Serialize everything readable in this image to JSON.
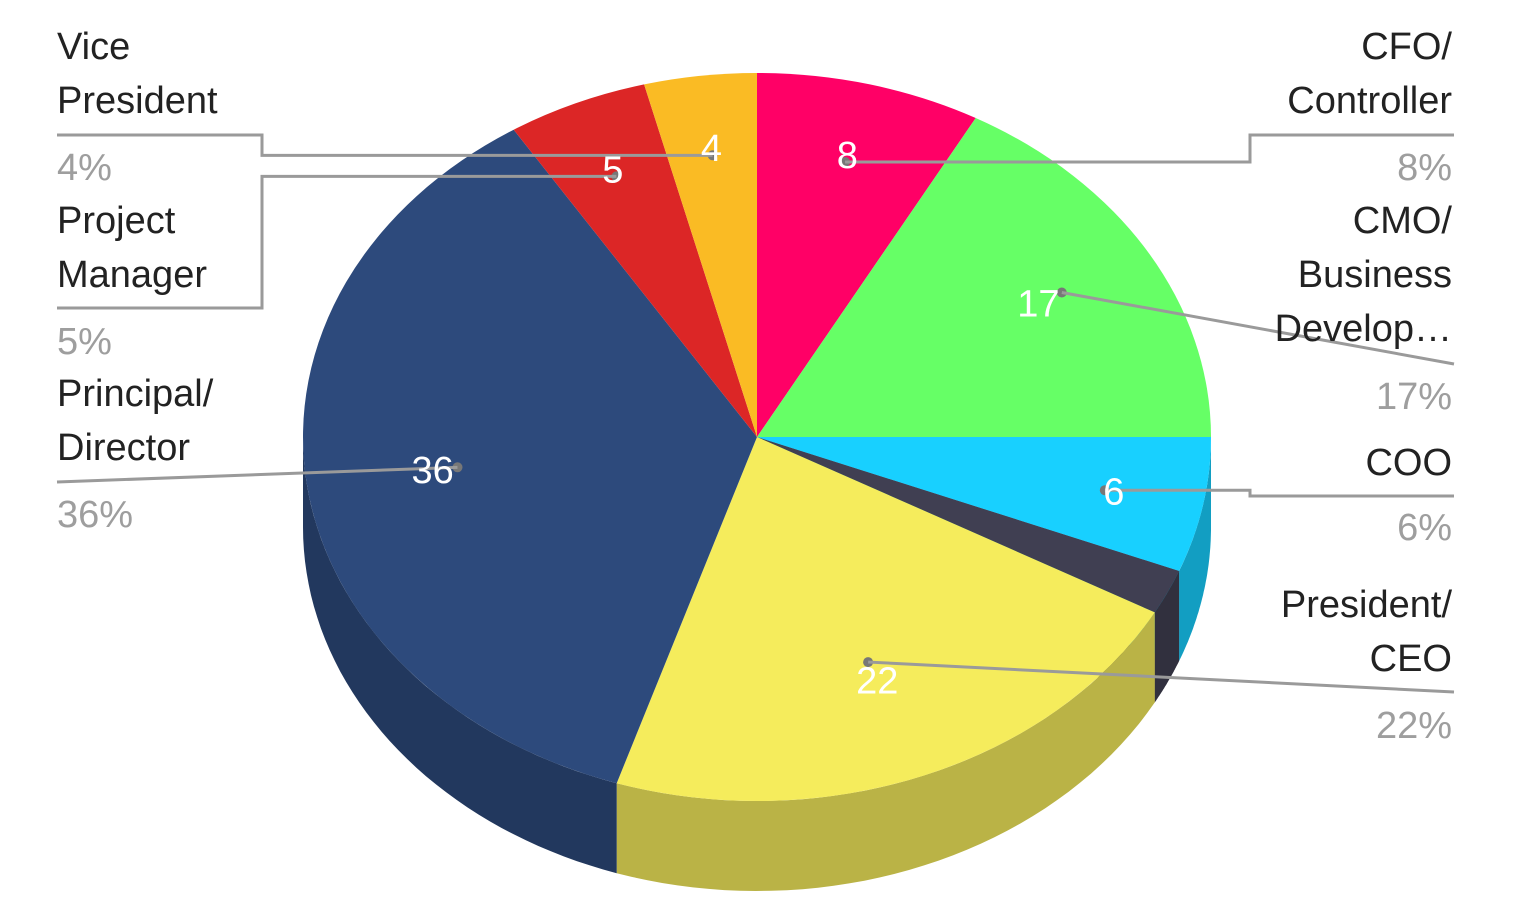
{
  "chart_data": {
    "type": "pie",
    "style": "3d",
    "title": "",
    "slices": [
      {
        "name": "CFO/ Controller",
        "lines": [
          "CFO/",
          "Controller"
        ],
        "value": 8,
        "percent": "8%",
        "color": "#ff0066"
      },
      {
        "name": "CMO/ Business Develop…",
        "lines": [
          "CMO/",
          "Business",
          "Develop…"
        ],
        "value": 17,
        "percent": "17%",
        "color": "#66ff66"
      },
      {
        "name": "COO",
        "lines": [
          "COO"
        ],
        "value": 6,
        "percent": "6%",
        "color": "#18d0ff"
      },
      {
        "name": "",
        "lines": [],
        "value": 2,
        "percent": "",
        "color": "#403f52"
      },
      {
        "name": "President/ CEO",
        "lines": [
          "President/",
          "CEO"
        ],
        "value": 22,
        "percent": "22%",
        "color": "#f5ec5c"
      },
      {
        "name": "Principal/ Director",
        "lines": [
          "Principal/",
          "Director"
        ],
        "value": 36,
        "percent": "36%",
        "color": "#2d4a7c"
      },
      {
        "name": "Project Manager",
        "lines": [
          "Project",
          "Manager"
        ],
        "value": 5,
        "percent": "5%",
        "color": "#dc2626"
      },
      {
        "name": "Vice President",
        "lines": [
          "Vice",
          "President"
        ],
        "value": 4,
        "percent": "4%",
        "color": "#fabb24"
      }
    ],
    "data_labels": [
      "8",
      "17",
      "6",
      "22",
      "36",
      "5",
      "4"
    ],
    "legend": "side labels with leader lines"
  }
}
